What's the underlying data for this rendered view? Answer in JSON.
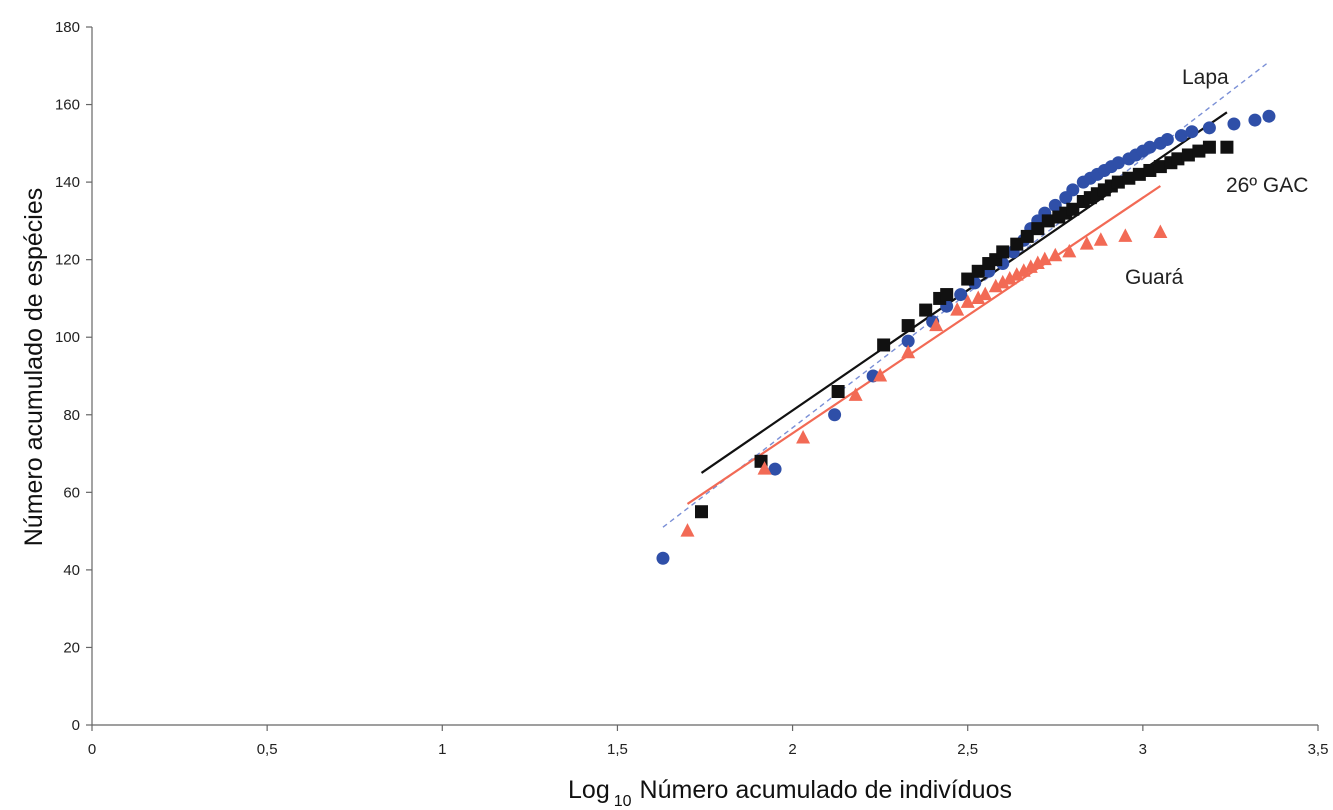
{
  "chart_data": {
    "type": "scatter",
    "title": "",
    "xlabel": {
      "prefix": "Log",
      "subscript": "10",
      "suffix": "Número acumulado de indivíduos"
    },
    "ylabel": "Número acumulado de espécies",
    "xlim": [
      0,
      3.5
    ],
    "ylim": [
      0,
      180
    ],
    "x_ticks": [
      "0",
      "0,5",
      "1",
      "1,5",
      "2",
      "2,5",
      "3",
      "3,5"
    ],
    "x_tick_values": [
      0,
      0.5,
      1,
      1.5,
      2,
      2.5,
      3,
      3.5
    ],
    "y_ticks": [
      "0",
      "20",
      "40",
      "60",
      "80",
      "100",
      "120",
      "140",
      "160",
      "180"
    ],
    "y_tick_values": [
      0,
      20,
      40,
      60,
      80,
      100,
      120,
      140,
      160,
      180
    ],
    "grid": false,
    "legend": "none",
    "series": [
      {
        "name": "Lapa",
        "marker": "circle",
        "color": "#2f4fa8",
        "trend": {
          "x": [
            1.63,
            3.36
          ],
          "y": [
            51,
            171
          ],
          "style": "dashed",
          "color": "#7a8fd6"
        },
        "points": [
          [
            1.63,
            43
          ],
          [
            1.95,
            66
          ],
          [
            2.12,
            80
          ],
          [
            2.23,
            90
          ],
          [
            2.33,
            99
          ],
          [
            2.4,
            104
          ],
          [
            2.44,
            108
          ],
          [
            2.48,
            111
          ],
          [
            2.52,
            114
          ],
          [
            2.56,
            117
          ],
          [
            2.6,
            119
          ],
          [
            2.63,
            122
          ],
          [
            2.66,
            125
          ],
          [
            2.68,
            128
          ],
          [
            2.7,
            130
          ],
          [
            2.72,
            132
          ],
          [
            2.75,
            134
          ],
          [
            2.78,
            136
          ],
          [
            2.8,
            138
          ],
          [
            2.83,
            140
          ],
          [
            2.85,
            141
          ],
          [
            2.87,
            142
          ],
          [
            2.89,
            143
          ],
          [
            2.91,
            144
          ],
          [
            2.93,
            145
          ],
          [
            2.96,
            146
          ],
          [
            2.98,
            147
          ],
          [
            3.0,
            148
          ],
          [
            3.02,
            149
          ],
          [
            3.05,
            150
          ],
          [
            3.07,
            151
          ],
          [
            3.11,
            152
          ],
          [
            3.14,
            153
          ],
          [
            3.19,
            154
          ],
          [
            3.26,
            155
          ],
          [
            3.32,
            156
          ],
          [
            3.36,
            157
          ]
        ]
      },
      {
        "name": "26º GAC",
        "marker": "square",
        "color": "#111111",
        "trend": {
          "x": [
            1.74,
            3.24
          ],
          "y": [
            65,
            158
          ],
          "style": "solid",
          "color": "#111111"
        },
        "points": [
          [
            1.74,
            55
          ],
          [
            1.91,
            68
          ],
          [
            2.13,
            86
          ],
          [
            2.26,
            98
          ],
          [
            2.33,
            103
          ],
          [
            2.38,
            107
          ],
          [
            2.42,
            110
          ],
          [
            2.44,
            111
          ],
          [
            2.5,
            115
          ],
          [
            2.53,
            117
          ],
          [
            2.56,
            119
          ],
          [
            2.58,
            120
          ],
          [
            2.6,
            122
          ],
          [
            2.64,
            124
          ],
          [
            2.67,
            126
          ],
          [
            2.7,
            128
          ],
          [
            2.73,
            130
          ],
          [
            2.76,
            131
          ],
          [
            2.78,
            132
          ],
          [
            2.8,
            133
          ],
          [
            2.83,
            135
          ],
          [
            2.85,
            136
          ],
          [
            2.87,
            137
          ],
          [
            2.89,
            138
          ],
          [
            2.91,
            139
          ],
          [
            2.93,
            140
          ],
          [
            2.96,
            141
          ],
          [
            2.99,
            142
          ],
          [
            3.02,
            143
          ],
          [
            3.05,
            144
          ],
          [
            3.08,
            145
          ],
          [
            3.1,
            146
          ],
          [
            3.13,
            147
          ],
          [
            3.16,
            148
          ],
          [
            3.19,
            149
          ],
          [
            3.24,
            149
          ]
        ]
      },
      {
        "name": "Guará",
        "marker": "triangle",
        "color": "#f26a55",
        "trend": {
          "x": [
            1.7,
            3.05
          ],
          "y": [
            57,
            139
          ],
          "style": "solid",
          "color": "#f26a55"
        },
        "points": [
          [
            1.7,
            50
          ],
          [
            1.92,
            66
          ],
          [
            2.03,
            74
          ],
          [
            2.18,
            85
          ],
          [
            2.25,
            90
          ],
          [
            2.33,
            96
          ],
          [
            2.41,
            103
          ],
          [
            2.47,
            107
          ],
          [
            2.5,
            109
          ],
          [
            2.53,
            110
          ],
          [
            2.55,
            111
          ],
          [
            2.58,
            113
          ],
          [
            2.6,
            114
          ],
          [
            2.62,
            115
          ],
          [
            2.64,
            116
          ],
          [
            2.66,
            117
          ],
          [
            2.68,
            118
          ],
          [
            2.7,
            119
          ],
          [
            2.72,
            120
          ],
          [
            2.75,
            121
          ],
          [
            2.79,
            122
          ],
          [
            2.84,
            124
          ],
          [
            2.88,
            125
          ],
          [
            2.95,
            126
          ],
          [
            3.05,
            127
          ]
        ]
      }
    ],
    "annotations": [
      "Lapa",
      "26º GAC",
      "Guará"
    ]
  }
}
